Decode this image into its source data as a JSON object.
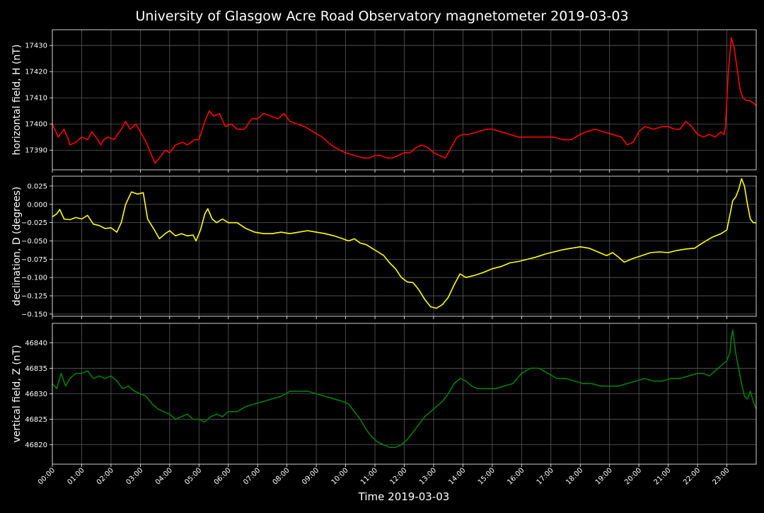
{
  "title": "University of Glasgow Acre Road Observatory magnetometer 2019-03-03",
  "xlabel": "Time 2019-03-03",
  "x_ticks": [
    "00:00",
    "01:00",
    "02:00",
    "03:00",
    "04:00",
    "05:00",
    "06:00",
    "07:00",
    "08:00",
    "09:00",
    "10:00",
    "11:00",
    "12:00",
    "13:00",
    "14:00",
    "15:00",
    "16:00",
    "17:00",
    "18:00",
    "19:00",
    "20:00",
    "21:00",
    "22:00",
    "23:00"
  ],
  "chart_data": [
    {
      "type": "line",
      "ylabel": "horizontal field, H (nT)",
      "color": "#ff0000",
      "ylim": [
        17382.5,
        17436
      ],
      "yticks": [
        17390,
        17400,
        17410,
        17420,
        17430
      ],
      "xlim": [
        0,
        24
      ],
      "grid": true,
      "x": [
        0,
        0.2,
        0.4,
        0.55,
        0.6,
        0.8,
        1.0,
        1.2,
        1.35,
        1.55,
        1.65,
        1.75,
        1.9,
        2.1,
        2.35,
        2.5,
        2.65,
        2.85,
        3.0,
        3.2,
        3.35,
        3.5,
        3.65,
        3.85,
        4.0,
        4.2,
        4.45,
        4.6,
        4.85,
        5.0,
        5.2,
        5.35,
        5.5,
        5.7,
        5.9,
        6.1,
        6.3,
        6.55,
        6.8,
        7.0,
        7.2,
        7.45,
        7.7,
        7.9,
        8.1,
        8.35,
        8.6,
        8.9,
        9.2,
        9.5,
        9.8,
        10.0,
        10.3,
        10.6,
        10.8,
        11.0,
        11.2,
        11.4,
        11.6,
        11.8,
        12.0,
        12.2,
        12.4,
        12.6,
        12.8,
        13.0,
        13.2,
        13.4,
        13.6,
        13.8,
        14.0,
        14.2,
        14.5,
        14.8,
        15.0,
        15.3,
        15.6,
        15.9,
        16.2,
        16.5,
        16.8,
        17.1,
        17.4,
        17.7,
        18.0,
        18.2,
        18.5,
        18.8,
        19.1,
        19.4,
        19.6,
        19.8,
        20.0,
        20.2,
        20.5,
        20.8,
        21.0,
        21.2,
        21.4,
        21.6,
        21.8,
        22.0,
        22.2,
        22.4,
        22.6,
        22.8,
        22.9,
        22.95,
        23.05,
        23.15,
        23.25,
        23.35,
        23.45,
        23.55,
        23.65,
        23.75,
        23.9,
        24.0
      ],
      "values": [
        17400,
        17395,
        17398,
        17394,
        17392,
        17393,
        17395,
        17394,
        17397,
        17394,
        17392,
        17394,
        17395,
        17394,
        17398,
        17401,
        17398,
        17400,
        17397,
        17393,
        17389,
        17385,
        17387,
        17390,
        17389,
        17392,
        17393,
        17392,
        17394,
        17394,
        17401,
        17405,
        17403,
        17404,
        17399,
        17400,
        17398,
        17398,
        17402,
        17402,
        17404,
        17403,
        17402,
        17404,
        17401,
        17400,
        17399,
        17397,
        17395,
        17392,
        17390,
        17389,
        17388,
        17387,
        17387,
        17388,
        17388,
        17387,
        17387,
        17388,
        17389,
        17389,
        17391,
        17392,
        17391,
        17389,
        17388,
        17387,
        17391,
        17395,
        17396,
        17396,
        17397,
        17398,
        17398,
        17397,
        17396,
        17395,
        17395,
        17395,
        17395,
        17395,
        17394,
        17394,
        17396,
        17397,
        17398,
        17397,
        17396,
        17395,
        17392,
        17393,
        17397,
        17399,
        17398,
        17399,
        17399,
        17398,
        17398,
        17401,
        17399,
        17396,
        17395,
        17396,
        17395,
        17397,
        17396,
        17399,
        17420,
        17433,
        17429,
        17421,
        17413,
        17410,
        17409,
        17409,
        17408,
        17407
      ]
    },
    {
      "type": "line",
      "ylabel": "declination, D (degrees)",
      "color": "#ffff00",
      "ylim": [
        -0.153,
        0.0385
      ],
      "yticks": [
        -0.15,
        -0.125,
        -0.1,
        -0.075,
        -0.05,
        -0.025,
        0.0,
        0.025
      ],
      "ytick_labels": [
        "−0.150",
        "−0.125",
        "−0.100",
        "−0.075",
        "−0.050",
        "−0.025",
        "0.000",
        "0.025"
      ],
      "xlim": [
        0,
        24
      ],
      "grid": true,
      "x": [
        0,
        0.15,
        0.25,
        0.4,
        0.6,
        0.8,
        1.0,
        1.2,
        1.4,
        1.6,
        1.8,
        2.0,
        2.2,
        2.35,
        2.5,
        2.7,
        2.9,
        3.1,
        3.25,
        3.45,
        3.65,
        3.85,
        4.0,
        4.2,
        4.4,
        4.6,
        4.8,
        4.9,
        5.05,
        5.2,
        5.3,
        5.45,
        5.6,
        5.8,
        6.0,
        6.3,
        6.6,
        6.9,
        7.2,
        7.5,
        7.8,
        8.1,
        8.4,
        8.7,
        9.0,
        9.3,
        9.6,
        9.9,
        10.1,
        10.3,
        10.5,
        10.7,
        10.9,
        11.1,
        11.3,
        11.5,
        11.7,
        11.9,
        12.1,
        12.3,
        12.5,
        12.7,
        12.9,
        13.1,
        13.3,
        13.5,
        13.7,
        13.9,
        14.1,
        14.4,
        14.7,
        15.0,
        15.3,
        15.6,
        15.9,
        16.2,
        16.5,
        16.8,
        17.1,
        17.4,
        17.7,
        18.0,
        18.3,
        18.6,
        18.9,
        19.1,
        19.3,
        19.5,
        19.8,
        20.1,
        20.4,
        20.7,
        21.0,
        21.3,
        21.6,
        21.9,
        22.2,
        22.5,
        22.8,
        23.0,
        23.1,
        23.2,
        23.3,
        23.4,
        23.5,
        23.6,
        23.7,
        23.8,
        23.9,
        24.0
      ],
      "values": [
        -0.017,
        -0.013,
        -0.007,
        -0.02,
        -0.021,
        -0.018,
        -0.02,
        -0.015,
        -0.027,
        -0.029,
        -0.033,
        -0.032,
        -0.038,
        -0.025,
        0.0,
        0.017,
        0.014,
        0.016,
        -0.02,
        -0.033,
        -0.047,
        -0.04,
        -0.036,
        -0.043,
        -0.04,
        -0.043,
        -0.042,
        -0.05,
        -0.035,
        -0.013,
        -0.006,
        -0.02,
        -0.025,
        -0.02,
        -0.025,
        -0.025,
        -0.033,
        -0.038,
        -0.04,
        -0.04,
        -0.038,
        -0.04,
        -0.038,
        -0.036,
        -0.038,
        -0.04,
        -0.043,
        -0.047,
        -0.05,
        -0.047,
        -0.053,
        -0.055,
        -0.06,
        -0.065,
        -0.07,
        -0.08,
        -0.088,
        -0.1,
        -0.106,
        -0.107,
        -0.117,
        -0.13,
        -0.14,
        -0.142,
        -0.137,
        -0.127,
        -0.11,
        -0.095,
        -0.1,
        -0.097,
        -0.093,
        -0.088,
        -0.085,
        -0.08,
        -0.078,
        -0.075,
        -0.072,
        -0.068,
        -0.065,
        -0.062,
        -0.06,
        -0.058,
        -0.06,
        -0.065,
        -0.07,
        -0.066,
        -0.072,
        -0.079,
        -0.074,
        -0.07,
        -0.066,
        -0.065,
        -0.066,
        -0.063,
        -0.061,
        -0.06,
        -0.052,
        -0.045,
        -0.04,
        -0.035,
        -0.015,
        0.005,
        0.01,
        0.02,
        0.035,
        0.025,
        0.0,
        -0.02,
        -0.025,
        -0.025
      ]
    },
    {
      "type": "line",
      "ylabel": "vertical field, Z (nT)",
      "color": "#008000",
      "ylim": [
        46816.2,
        46843.8
      ],
      "yticks": [
        46820,
        46825,
        46830,
        46835,
        46840
      ],
      "xlim": [
        0,
        24
      ],
      "grid": true,
      "x": [
        0,
        0.15,
        0.3,
        0.45,
        0.6,
        0.8,
        1.0,
        1.2,
        1.4,
        1.6,
        1.8,
        2.0,
        2.2,
        2.4,
        2.6,
        2.8,
        3.0,
        3.2,
        3.4,
        3.6,
        3.8,
        4.0,
        4.2,
        4.4,
        4.6,
        4.8,
        5.0,
        5.2,
        5.4,
        5.6,
        5.8,
        6.0,
        6.3,
        6.6,
        6.9,
        7.2,
        7.5,
        7.8,
        8.1,
        8.4,
        8.7,
        9.0,
        9.3,
        9.6,
        9.9,
        10.1,
        10.3,
        10.5,
        10.7,
        10.9,
        11.1,
        11.3,
        11.5,
        11.7,
        11.9,
        12.1,
        12.3,
        12.5,
        12.7,
        12.9,
        13.1,
        13.3,
        13.5,
        13.7,
        13.9,
        14.1,
        14.3,
        14.5,
        14.8,
        15.1,
        15.4,
        15.7,
        16.0,
        16.3,
        16.6,
        16.9,
        17.2,
        17.5,
        17.8,
        18.1,
        18.4,
        18.7,
        19.0,
        19.3,
        19.6,
        19.9,
        20.2,
        20.5,
        20.8,
        21.1,
        21.4,
        21.7,
        22.0,
        22.2,
        22.4,
        22.6,
        22.8,
        22.9,
        23.0,
        23.1,
        23.15,
        23.2,
        23.3,
        23.4,
        23.5,
        23.6,
        23.7,
        23.8,
        23.9,
        24.0
      ],
      "values": [
        46832,
        46831,
        46834,
        46831.5,
        46833,
        46834,
        46834,
        46834.5,
        46833,
        46833.5,
        46833,
        46833.5,
        46832.5,
        46831,
        46831.5,
        46830.5,
        46830,
        46829.5,
        46828,
        46827,
        46826.5,
        46826,
        46825,
        46825.5,
        46826,
        46825,
        46825,
        46824.5,
        46825.5,
        46826,
        46825.5,
        46826.5,
        46826.5,
        46827.5,
        46828,
        46828.5,
        46829,
        46829.5,
        46830.5,
        46830.5,
        46830.5,
        46830,
        46829.5,
        46829,
        46828.5,
        46828,
        46826.5,
        46825,
        46823,
        46821.5,
        46820.5,
        46820,
        46819.5,
        46819.5,
        46820,
        46821,
        46822.5,
        46824,
        46825.5,
        46826.5,
        46827.5,
        46828.5,
        46830,
        46832,
        46833,
        46832.5,
        46831.5,
        46831,
        46831,
        46831,
        46831.5,
        46832,
        46834,
        46835,
        46835,
        46834,
        46833,
        46833,
        46832.5,
        46832,
        46832,
        46831.5,
        46831.5,
        46831.5,
        46832,
        46832.5,
        46833,
        46832.5,
        46832.5,
        46833,
        46833,
        46833.5,
        46834,
        46834,
        46833.5,
        46834.5,
        46835.5,
        46836,
        46836.5,
        46838,
        46841,
        46842.5,
        46838,
        46835,
        46832,
        46829.5,
        46829,
        46830.5,
        46828.5,
        46827
      ]
    }
  ]
}
